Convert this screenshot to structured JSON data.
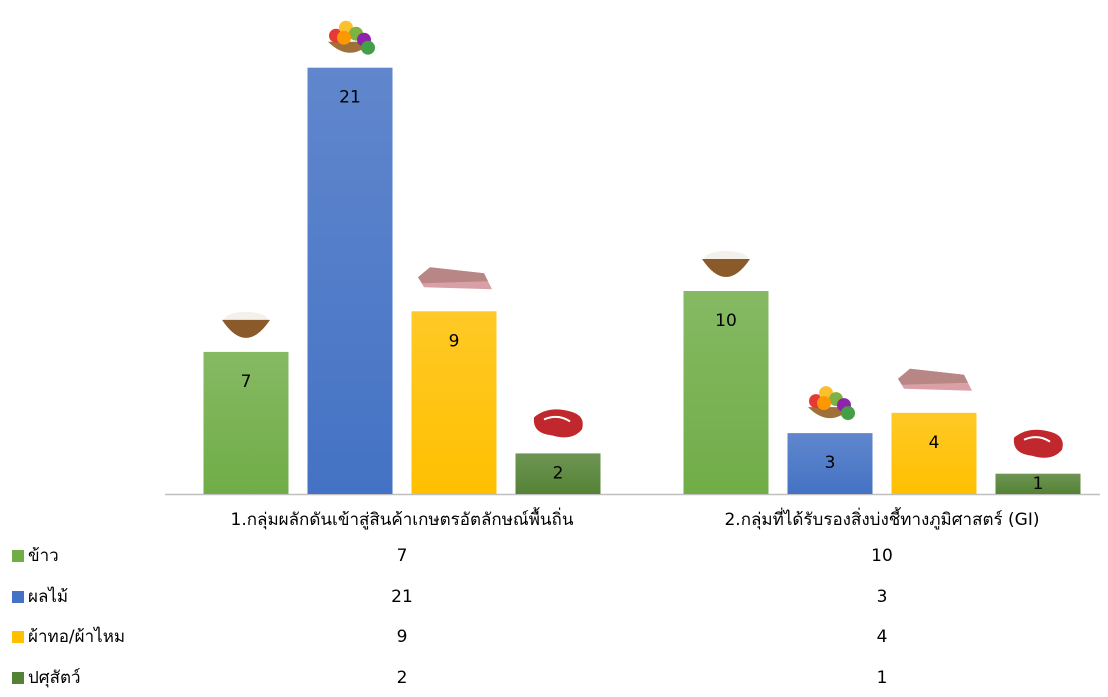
{
  "chart_data": {
    "type": "bar",
    "categories": [
      "1.กลุ่มผลักดันเข้าสู่สินค้าเกษตรอัตลักษณ์พื้นถิ่น",
      "2.กลุ่มที่ได้รับรองสิ่งบ่งชี้ทางภูมิศาสตร์ (GI)"
    ],
    "series": [
      {
        "name": "ข้าว",
        "color": "#70ad47",
        "values": [
          7,
          10
        ]
      },
      {
        "name": "ผลไม้",
        "color": "#4472c4",
        "values": [
          21,
          3
        ]
      },
      {
        "name": "ผ้าทอ/ผ้าไหม",
        "color": "#ffc000",
        "values": [
          9,
          4
        ]
      },
      {
        "name": "ปศุสัตว์",
        "color": "#548235",
        "values": [
          2,
          1
        ]
      }
    ]
  }
}
